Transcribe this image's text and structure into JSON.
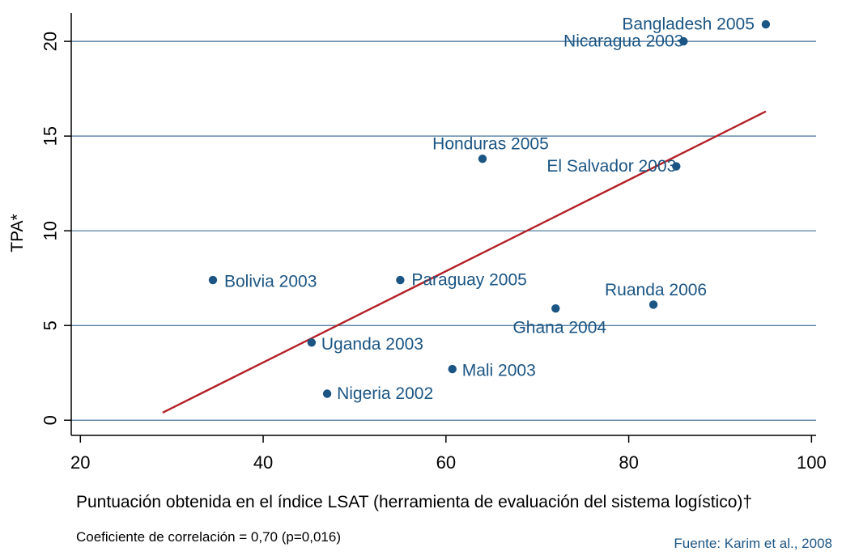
{
  "chart_data": {
    "type": "scatter",
    "ylabel": "TPA*",
    "xlabel": "Puntuación obtenida en el índice LSAT (herramienta de evaluación del sistema logístico)†",
    "xlim": [
      19,
      100.5
    ],
    "ylim": [
      -0.8,
      21.5
    ],
    "x_ticks": [
      20,
      40,
      60,
      80,
      100
    ],
    "y_ticks": [
      0,
      5,
      10,
      15,
      20
    ],
    "grid": "horizontal",
    "colors": {
      "points": "#1b5584",
      "labels": "#1b5584",
      "fit_line": "#b32025",
      "grid": "#1b5584",
      "axis": "#000000"
    },
    "points": [
      {
        "label": "Bangladesh 2005",
        "x": 95,
        "y": 20.9
      },
      {
        "label": "Nicaragua 2003",
        "x": 86,
        "y": 20.0
      },
      {
        "label": "Honduras 2005",
        "x": 64,
        "y": 13.8
      },
      {
        "label": "El Salvador 2003",
        "x": 85.2,
        "y": 13.4
      },
      {
        "label": "Bolivia 2003",
        "x": 34.5,
        "y": 7.4
      },
      {
        "label": "Paraguay 2005",
        "x": 55,
        "y": 7.4
      },
      {
        "label": "Ruanda 2006",
        "x": 82.7,
        "y": 6.1
      },
      {
        "label": "Ghana 2004",
        "x": 72,
        "y": 5.9
      },
      {
        "label": "Uganda 2003",
        "x": 45.3,
        "y": 4.1
      },
      {
        "label": "Mali 2003",
        "x": 60.7,
        "y": 2.7
      },
      {
        "label": "Nigeria 2002",
        "x": 47,
        "y": 1.4
      }
    ],
    "fit_line": {
      "x": [
        29,
        95
      ],
      "y": [
        0.4,
        16.3
      ]
    },
    "annotation": "Coeficiente de correlación = 0,70 (p=0,016)",
    "source": "Fuente: Karim et al., 2008"
  }
}
